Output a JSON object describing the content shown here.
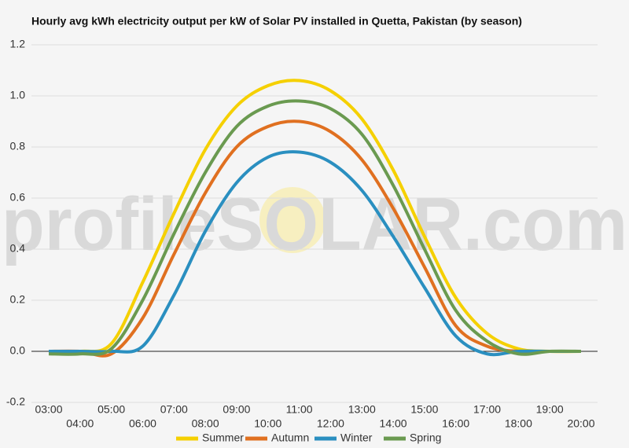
{
  "chart_data": {
    "type": "line",
    "title": "Hourly avg kWh electricity output per kW of Solar PV installed in Quetta, Pakistan (by season)",
    "watermark": "profileSOLAR.com",
    "categories": [
      "03:00",
      "04:00",
      "05:00",
      "06:00",
      "07:00",
      "08:00",
      "09:00",
      "10:00",
      "11:00",
      "12:00",
      "13:00",
      "14:00",
      "15:00",
      "16:00",
      "17:00",
      "18:00",
      "19:00",
      "20:00"
    ],
    "series": [
      {
        "name": "Summer",
        "color": "#f5d000",
        "values": [
          0,
          0,
          0.03,
          0.27,
          0.54,
          0.79,
          0.96,
          1.04,
          1.06,
          1.02,
          0.91,
          0.71,
          0.45,
          0.21,
          0.07,
          0.01,
          0,
          0
        ]
      },
      {
        "name": "Autumn",
        "color": "#e07020",
        "values": [
          0,
          0,
          -0.01,
          0.13,
          0.38,
          0.62,
          0.8,
          0.88,
          0.9,
          0.86,
          0.75,
          0.56,
          0.33,
          0.1,
          0.02,
          0,
          0,
          0
        ]
      },
      {
        "name": "Winter",
        "color": "#2a8fc0",
        "values": [
          0,
          0,
          0,
          0.02,
          0.22,
          0.47,
          0.66,
          0.76,
          0.78,
          0.74,
          0.63,
          0.45,
          0.25,
          0.06,
          -0.01,
          0,
          0,
          0
        ]
      },
      {
        "name": "Spring",
        "color": "#6a9a50",
        "values": [
          -0.01,
          -0.01,
          0.01,
          0.2,
          0.46,
          0.7,
          0.88,
          0.96,
          0.98,
          0.95,
          0.85,
          0.65,
          0.4,
          0.16,
          0.04,
          -0.01,
          0,
          0
        ]
      }
    ],
    "ylim": [
      -0.2,
      1.2
    ],
    "yticks": [
      -0.2,
      {
        "value": 0,
        "label": "0.0"
      },
      0.2,
      0.4,
      0.6,
      0.8,
      {
        "value": 1,
        "label": "1.0"
      },
      1.2
    ],
    "grid": true
  }
}
